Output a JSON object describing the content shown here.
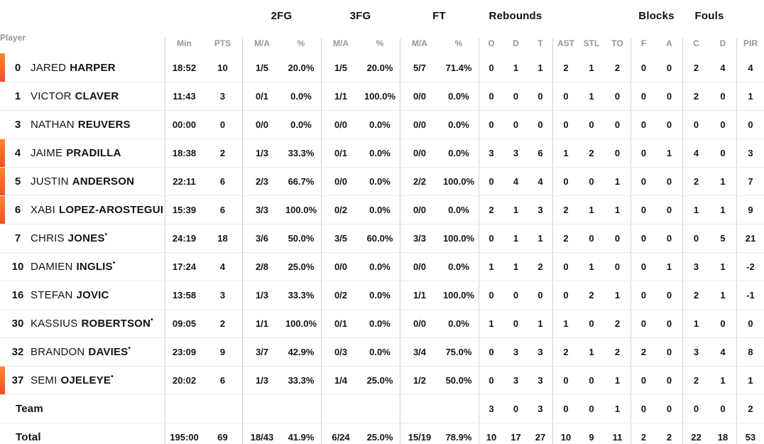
{
  "table": {
    "player_column_label": "Player",
    "group_headers": {
      "fg2": "2FG",
      "fg3": "3FG",
      "ft": "FT",
      "rebounds": "Rebounds",
      "blocks": "Blocks",
      "fouls": "Fouls"
    },
    "column_headers": {
      "min": "Min",
      "pts": "PTS",
      "fg2_ma": "M/A",
      "fg2_pct": "%",
      "fg3_ma": "M/A",
      "fg3_pct": "%",
      "ft_ma": "M/A",
      "ft_pct": "%",
      "reb_o": "O",
      "reb_d": "D",
      "reb_t": "T",
      "ast": "AST",
      "stl": "STL",
      "to": "TO",
      "blk_f": "F",
      "blk_a": "A",
      "foul_c": "C",
      "foul_d": "D",
      "pir": "PIR"
    },
    "rows": [
      {
        "type": "player",
        "on_court": true,
        "number": "0",
        "first": "JARED",
        "last": "HARPER",
        "starter_mark": "",
        "min": "18:52",
        "pts": "10",
        "fg2_ma": "1/5",
        "fg2_pct": "20.0%",
        "fg3_ma": "1/5",
        "fg3_pct": "20.0%",
        "ft_ma": "5/7",
        "ft_pct": "71.4%",
        "reb_o": "0",
        "reb_d": "1",
        "reb_t": "1",
        "ast": "2",
        "stl": "1",
        "to": "2",
        "blk_f": "0",
        "blk_a": "0",
        "foul_c": "2",
        "foul_d": "4",
        "pir": "4"
      },
      {
        "type": "player",
        "on_court": false,
        "number": "1",
        "first": "VICTOR",
        "last": "CLAVER",
        "starter_mark": "",
        "min": "11:43",
        "pts": "3",
        "fg2_ma": "0/1",
        "fg2_pct": "0.0%",
        "fg3_ma": "1/1",
        "fg3_pct": "100.0%",
        "ft_ma": "0/0",
        "ft_pct": "0.0%",
        "reb_o": "0",
        "reb_d": "0",
        "reb_t": "0",
        "ast": "0",
        "stl": "1",
        "to": "0",
        "blk_f": "0",
        "blk_a": "0",
        "foul_c": "2",
        "foul_d": "0",
        "pir": "1"
      },
      {
        "type": "player",
        "on_court": false,
        "number": "3",
        "first": "NATHAN",
        "last": "REUVERS",
        "starter_mark": "",
        "min": "00:00",
        "pts": "0",
        "fg2_ma": "0/0",
        "fg2_pct": "0.0%",
        "fg3_ma": "0/0",
        "fg3_pct": "0.0%",
        "ft_ma": "0/0",
        "ft_pct": "0.0%",
        "reb_o": "0",
        "reb_d": "0",
        "reb_t": "0",
        "ast": "0",
        "stl": "0",
        "to": "0",
        "blk_f": "0",
        "blk_a": "0",
        "foul_c": "0",
        "foul_d": "0",
        "pir": "0"
      },
      {
        "type": "player",
        "on_court": true,
        "number": "4",
        "first": "JAIME",
        "last": "PRADILLA",
        "starter_mark": "",
        "min": "18:38",
        "pts": "2",
        "fg2_ma": "1/3",
        "fg2_pct": "33.3%",
        "fg3_ma": "0/1",
        "fg3_pct": "0.0%",
        "ft_ma": "0/0",
        "ft_pct": "0.0%",
        "reb_o": "3",
        "reb_d": "3",
        "reb_t": "6",
        "ast": "1",
        "stl": "2",
        "to": "0",
        "blk_f": "0",
        "blk_a": "1",
        "foul_c": "4",
        "foul_d": "0",
        "pir": "3"
      },
      {
        "type": "player",
        "on_court": true,
        "number": "5",
        "first": "JUSTIN",
        "last": "ANDERSON",
        "starter_mark": "",
        "min": "22:11",
        "pts": "6",
        "fg2_ma": "2/3",
        "fg2_pct": "66.7%",
        "fg3_ma": "0/0",
        "fg3_pct": "0.0%",
        "ft_ma": "2/2",
        "ft_pct": "100.0%",
        "reb_o": "0",
        "reb_d": "4",
        "reb_t": "4",
        "ast": "0",
        "stl": "0",
        "to": "1",
        "blk_f": "0",
        "blk_a": "0",
        "foul_c": "2",
        "foul_d": "1",
        "pir": "7"
      },
      {
        "type": "player",
        "on_court": true,
        "number": "6",
        "first": "XABI",
        "last": "LOPEZ-AROSTEGUI",
        "starter_mark": "",
        "min": "15:39",
        "pts": "6",
        "fg2_ma": "3/3",
        "fg2_pct": "100.0%",
        "fg3_ma": "0/2",
        "fg3_pct": "0.0%",
        "ft_ma": "0/0",
        "ft_pct": "0.0%",
        "reb_o": "2",
        "reb_d": "1",
        "reb_t": "3",
        "ast": "2",
        "stl": "1",
        "to": "1",
        "blk_f": "0",
        "blk_a": "0",
        "foul_c": "1",
        "foul_d": "1",
        "pir": "9"
      },
      {
        "type": "player",
        "on_court": false,
        "number": "7",
        "first": "CHRIS",
        "last": "JONES",
        "starter_mark": "•",
        "min": "24:19",
        "pts": "18",
        "fg2_ma": "3/6",
        "fg2_pct": "50.0%",
        "fg3_ma": "3/5",
        "fg3_pct": "60.0%",
        "ft_ma": "3/3",
        "ft_pct": "100.0%",
        "reb_o": "0",
        "reb_d": "1",
        "reb_t": "1",
        "ast": "2",
        "stl": "0",
        "to": "0",
        "blk_f": "0",
        "blk_a": "0",
        "foul_c": "0",
        "foul_d": "5",
        "pir": "21"
      },
      {
        "type": "player",
        "on_court": false,
        "number": "10",
        "first": "DAMIEN",
        "last": "INGLIS",
        "starter_mark": "•",
        "min": "17:24",
        "pts": "4",
        "fg2_ma": "2/8",
        "fg2_pct": "25.0%",
        "fg3_ma": "0/0",
        "fg3_pct": "0.0%",
        "ft_ma": "0/0",
        "ft_pct": "0.0%",
        "reb_o": "1",
        "reb_d": "1",
        "reb_t": "2",
        "ast": "0",
        "stl": "1",
        "to": "0",
        "blk_f": "0",
        "blk_a": "1",
        "foul_c": "3",
        "foul_d": "1",
        "pir": "-2"
      },
      {
        "type": "player",
        "on_court": false,
        "number": "16",
        "first": "STEFAN",
        "last": "JOVIC",
        "starter_mark": "",
        "min": "13:58",
        "pts": "3",
        "fg2_ma": "1/3",
        "fg2_pct": "33.3%",
        "fg3_ma": "0/2",
        "fg3_pct": "0.0%",
        "ft_ma": "1/1",
        "ft_pct": "100.0%",
        "reb_o": "0",
        "reb_d": "0",
        "reb_t": "0",
        "ast": "0",
        "stl": "2",
        "to": "1",
        "blk_f": "0",
        "blk_a": "0",
        "foul_c": "2",
        "foul_d": "1",
        "pir": "-1"
      },
      {
        "type": "player",
        "on_court": false,
        "number": "30",
        "first": "KASSIUS",
        "last": "ROBERTSON",
        "starter_mark": "•",
        "min": "09:05",
        "pts": "2",
        "fg2_ma": "1/1",
        "fg2_pct": "100.0%",
        "fg3_ma": "0/1",
        "fg3_pct": "0.0%",
        "ft_ma": "0/0",
        "ft_pct": "0.0%",
        "reb_o": "1",
        "reb_d": "0",
        "reb_t": "1",
        "ast": "1",
        "stl": "0",
        "to": "2",
        "blk_f": "0",
        "blk_a": "0",
        "foul_c": "1",
        "foul_d": "0",
        "pir": "0"
      },
      {
        "type": "player",
        "on_court": false,
        "number": "32",
        "first": "BRANDON",
        "last": "DAVIES",
        "starter_mark": "•",
        "min": "23:09",
        "pts": "9",
        "fg2_ma": "3/7",
        "fg2_pct": "42.9%",
        "fg3_ma": "0/3",
        "fg3_pct": "0.0%",
        "ft_ma": "3/4",
        "ft_pct": "75.0%",
        "reb_o": "0",
        "reb_d": "3",
        "reb_t": "3",
        "ast": "2",
        "stl": "1",
        "to": "2",
        "blk_f": "2",
        "blk_a": "0",
        "foul_c": "3",
        "foul_d": "4",
        "pir": "8"
      },
      {
        "type": "player",
        "on_court": true,
        "number": "37",
        "first": "SEMI",
        "last": "OJELEYE",
        "starter_mark": "•",
        "min": "20:02",
        "pts": "6",
        "fg2_ma": "1/3",
        "fg2_pct": "33.3%",
        "fg3_ma": "1/4",
        "fg3_pct": "25.0%",
        "ft_ma": "1/2",
        "ft_pct": "50.0%",
        "reb_o": "0",
        "reb_d": "3",
        "reb_t": "3",
        "ast": "0",
        "stl": "0",
        "to": "1",
        "blk_f": "0",
        "blk_a": "0",
        "foul_c": "2",
        "foul_d": "1",
        "pir": "1"
      },
      {
        "type": "team",
        "on_court": false,
        "number": "",
        "first": "",
        "last": "Team",
        "starter_mark": "",
        "min": "",
        "pts": "",
        "fg2_ma": "",
        "fg2_pct": "",
        "fg3_ma": "",
        "fg3_pct": "",
        "ft_ma": "",
        "ft_pct": "",
        "reb_o": "3",
        "reb_d": "0",
        "reb_t": "3",
        "ast": "0",
        "stl": "0",
        "to": "1",
        "blk_f": "0",
        "blk_a": "0",
        "foul_c": "0",
        "foul_d": "0",
        "pir": "2"
      },
      {
        "type": "total",
        "on_court": false,
        "number": "",
        "first": "",
        "last": "Total",
        "starter_mark": "",
        "min": "195:00",
        "pts": "69",
        "fg2_ma": "18/43",
        "fg2_pct": "41.9%",
        "fg3_ma": "6/24",
        "fg3_pct": "25.0%",
        "ft_ma": "15/19",
        "ft_pct": "78.9%",
        "reb_o": "10",
        "reb_d": "17",
        "reb_t": "27",
        "ast": "10",
        "stl": "9",
        "to": "11",
        "blk_f": "2",
        "blk_a": "2",
        "foul_c": "22",
        "foul_d": "18",
        "pir": "53"
      }
    ]
  },
  "colors": {
    "on_court_accent_top": "#f8882f",
    "on_court_accent_bottom": "#f04f23"
  }
}
